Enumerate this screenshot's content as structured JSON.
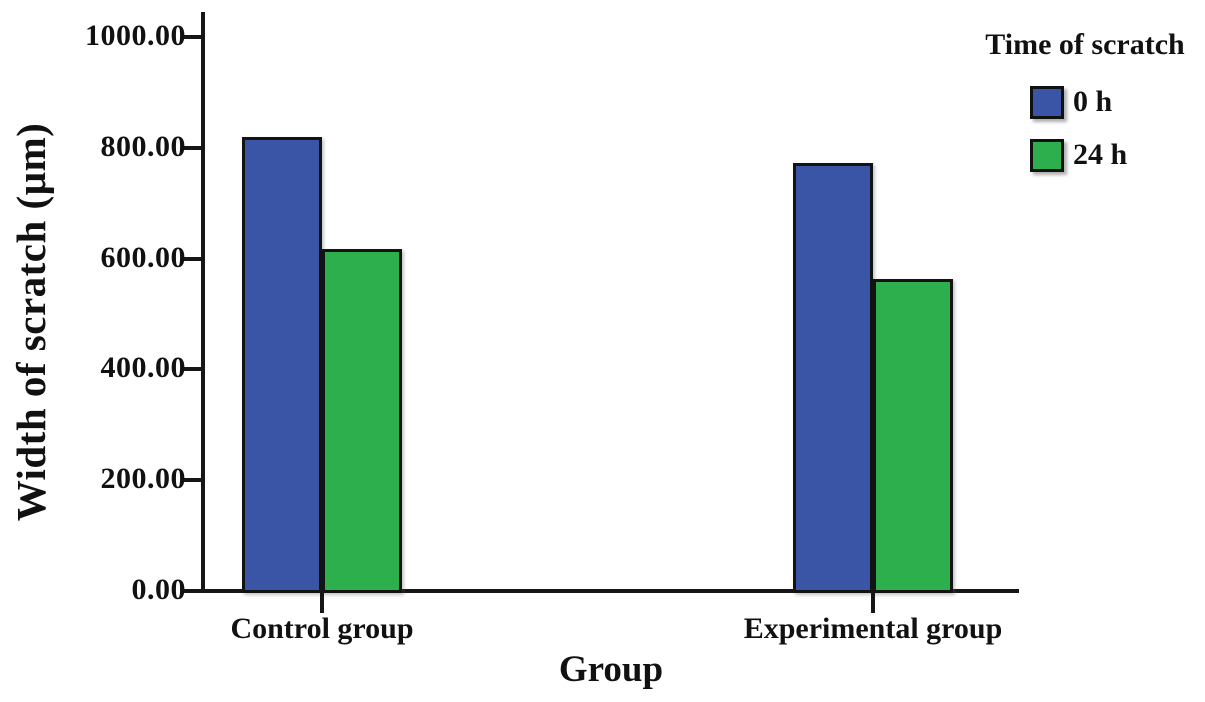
{
  "chart_data": {
    "type": "bar",
    "title": "",
    "xlabel": "Group",
    "ylabel": "Width of scratch (μm)",
    "legend_title": "Time of scratch",
    "legend_position": "top-right",
    "grid": false,
    "categories": [
      "Control group",
      "Experimental group"
    ],
    "series": [
      {
        "name": "0 h",
        "color": "#3B55A6",
        "values": [
          820,
          772
        ]
      },
      {
        "name": "24 h",
        "color": "#2DAF4D",
        "values": [
          617,
          563
        ]
      }
    ],
    "ylim": [
      0,
      1000
    ],
    "ytick_labels": [
      "0.00",
      "200.00",
      "400.00",
      "600.00",
      "800.00",
      "1000.00"
    ],
    "ytick_values": [
      0,
      200,
      400,
      600,
      800,
      1000
    ]
  }
}
